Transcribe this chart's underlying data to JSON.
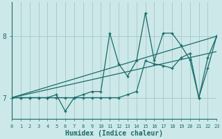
{
  "xlabel": "Humidex (Indice chaleur)",
  "bg_color": "#cce8e8",
  "grid_color": "#aacccc",
  "line_color": "#1a6b6b",
  "xlim": [
    0,
    23
  ],
  "ylim": [
    6.65,
    8.55
  ],
  "yticks": [
    7,
    8
  ],
  "xticks": [
    0,
    1,
    2,
    3,
    4,
    5,
    6,
    7,
    8,
    9,
    10,
    11,
    12,
    13,
    14,
    15,
    16,
    17,
    18,
    19,
    20,
    21,
    22,
    23
  ],
  "series1_x": [
    0,
    1,
    2,
    3,
    4,
    5,
    6,
    7,
    8,
    9,
    10,
    11,
    12,
    13,
    14,
    15,
    16,
    17,
    18,
    19,
    20,
    21,
    22,
    23
  ],
  "series1_y": [
    7.0,
    7.0,
    7.0,
    7.0,
    7.0,
    7.05,
    6.78,
    7.0,
    7.0,
    7.0,
    7.0,
    7.0,
    7.0,
    7.05,
    7.1,
    7.6,
    7.55,
    7.52,
    7.48,
    7.65,
    7.72,
    7.0,
    7.48,
    8.0
  ],
  "series2_x": [
    0,
    1,
    2,
    3,
    4,
    5,
    6,
    7,
    8,
    9,
    10,
    11,
    12,
    13,
    14,
    15,
    16,
    17,
    18,
    19,
    20,
    21,
    22,
    23
  ],
  "series2_y": [
    7.0,
    7.0,
    7.0,
    7.0,
    7.0,
    7.0,
    7.0,
    7.0,
    7.05,
    7.1,
    7.1,
    8.05,
    7.55,
    7.35,
    7.6,
    8.38,
    7.6,
    8.05,
    8.05,
    7.85,
    7.62,
    7.0,
    7.65,
    8.0
  ],
  "series3_x": [
    0,
    23
  ],
  "series3_y": [
    7.0,
    8.0
  ],
  "series4_x": [
    0,
    23
  ],
  "series4_y": [
    7.0,
    7.75
  ]
}
